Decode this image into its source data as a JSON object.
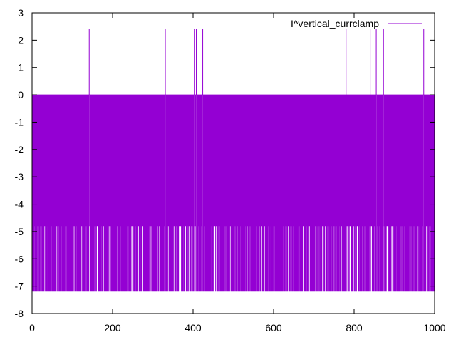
{
  "chart_data": {
    "type": "line",
    "title": "",
    "xlabel": "",
    "ylabel": "",
    "xlim": [
      0,
      1000
    ],
    "ylim": [
      -8,
      3
    ],
    "x_ticks": [
      0,
      200,
      400,
      600,
      800,
      1000
    ],
    "y_ticks": [
      3,
      2,
      1,
      0,
      -1,
      -2,
      -3,
      -4,
      -5,
      -6,
      -7,
      -8
    ],
    "x_tick_labels": [
      "0",
      "200",
      "400",
      "600",
      "800",
      "1000"
    ],
    "y_tick_labels": [
      "3",
      "2",
      "1",
      "0",
      "-1",
      "-2",
      "-3",
      "-4",
      "-5",
      "-6",
      "-7",
      "-8"
    ],
    "grid": false,
    "legend_position": "top-right",
    "series": [
      {
        "name": "I^vertical_currclamp",
        "color": "#9400d3",
        "baseline": 0,
        "high_value": 2.4,
        "mid_value": -4.8,
        "low_value": -7.2,
        "x_range": [
          0,
          1000
        ],
        "spikes_up_x": [
          142,
          331,
          403,
          408,
          424,
          780,
          840,
          855,
          873,
          973
        ]
      }
    ]
  }
}
